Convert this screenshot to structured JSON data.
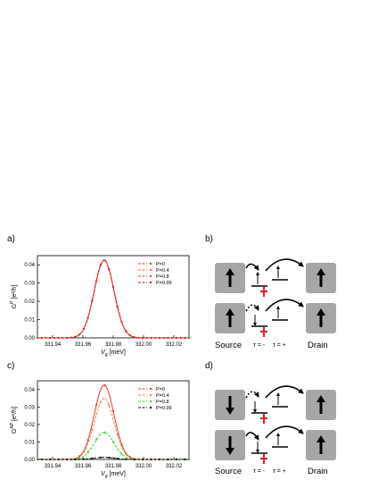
{
  "panels": {
    "a": {
      "label": "a)"
    },
    "b": {
      "label": "b)"
    },
    "c": {
      "label": "c)"
    },
    "d": {
      "label": "d)"
    }
  },
  "chart_data": [
    {
      "id": "a",
      "type": "line",
      "xlabel": "V_g [meV]",
      "ylabel": "G^P [e²/h]",
      "xlim": [
        331.93,
        332.03
      ],
      "ylim": [
        0,
        0.045
      ],
      "xticks": [
        331.94,
        331.96,
        331.98,
        332.0,
        332.02
      ],
      "xtick_labels": [
        "331.94",
        "331.96",
        "331.98",
        "332.00",
        "332.02"
      ],
      "yticks": [
        0.0,
        0.01,
        0.02,
        0.03,
        0.04
      ],
      "ytick_labels": [
        "0.00",
        "0.01",
        "0.02",
        "0.03",
        "0.04"
      ],
      "legend_position": "top-right",
      "center": 331.974,
      "width": 0.0065,
      "series": [
        {
          "name": "P=0",
          "peak": 0.0425,
          "color": "#e8392f"
        },
        {
          "name": "P=0.4",
          "peak": 0.0425,
          "color": "#ff6a50"
        },
        {
          "name": "P=0.8",
          "peak": 0.0425,
          "color": "#ff3a3a"
        },
        {
          "name": "P=0.99",
          "peak": 0.0425,
          "color": "#d42020"
        }
      ]
    },
    {
      "id": "c",
      "type": "line",
      "xlabel": "V_g [meV]",
      "ylabel": "G^AP [e²/h]",
      "xlim": [
        331.93,
        332.03
      ],
      "ylim": [
        0,
        0.045
      ],
      "xticks": [
        331.94,
        331.96,
        331.98,
        332.0,
        332.02
      ],
      "xtick_labels": [
        "331.94",
        "331.96",
        "331.98",
        "332.00",
        "332.02"
      ],
      "yticks": [
        0.0,
        0.01,
        0.02,
        0.03,
        0.04
      ],
      "ytick_labels": [
        "0.00",
        "0.01",
        "0.02",
        "0.03",
        "0.04"
      ],
      "legend_position": "top-right",
      "center": 331.974,
      "width": 0.0065,
      "series": [
        {
          "name": "P=0",
          "peak": 0.0425,
          "color": "#e8392f"
        },
        {
          "name": "P=0.4",
          "peak": 0.035,
          "color": "#f08a3a"
        },
        {
          "name": "P=0.8",
          "peak": 0.0155,
          "color": "#3ad82a"
        },
        {
          "name": "P=0.99",
          "peak": 0.0012,
          "color": "#000000"
        }
      ]
    }
  ],
  "schematic_b": {
    "source": "Source",
    "drain": "Drain",
    "tau_minus": "τ = -",
    "tau_plus": "τ = +"
  },
  "schematic_d": {
    "source": "Source",
    "drain": "Drain",
    "tau_minus": "τ = -",
    "tau_plus": "τ = +"
  },
  "colors": {
    "accent": "#e02020",
    "box": "#a6a6a6"
  }
}
